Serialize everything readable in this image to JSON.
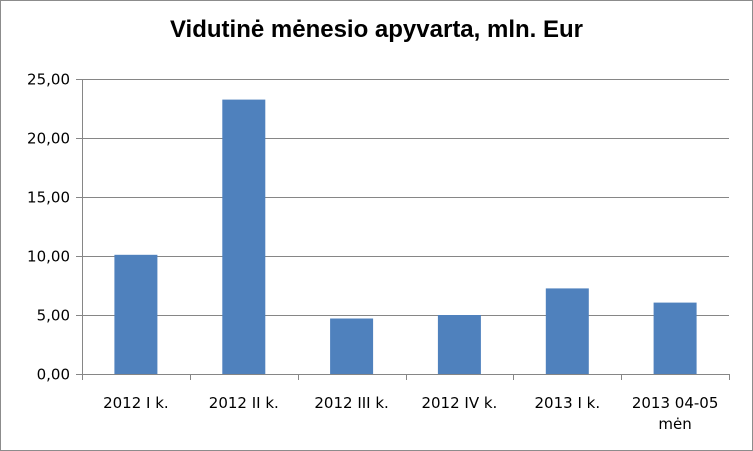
{
  "chart_data": {
    "type": "bar",
    "title": "Vidutinė mėnesio apyvarta, mln. Eur",
    "categories": [
      [
        "2012 I k."
      ],
      [
        "2012 II k."
      ],
      [
        "2012 III k."
      ],
      [
        "2012 IV k."
      ],
      [
        "2013 I k."
      ],
      [
        "2013 04-05",
        "mėn"
      ]
    ],
    "values": [
      10.1,
      23.25,
      4.7,
      5.0,
      7.25,
      6.05
    ],
    "ylim": [
      0,
      25
    ],
    "yticks": [
      0,
      5,
      10,
      15,
      20,
      25
    ],
    "ytick_labels": [
      "0,00",
      "5,00",
      "10,00",
      "15,00",
      "20,00",
      "25,00"
    ],
    "grid": true,
    "legend": "none",
    "bar_color": "#4f81bd",
    "grid_color": "#868686",
    "axis_color": "#868686"
  }
}
